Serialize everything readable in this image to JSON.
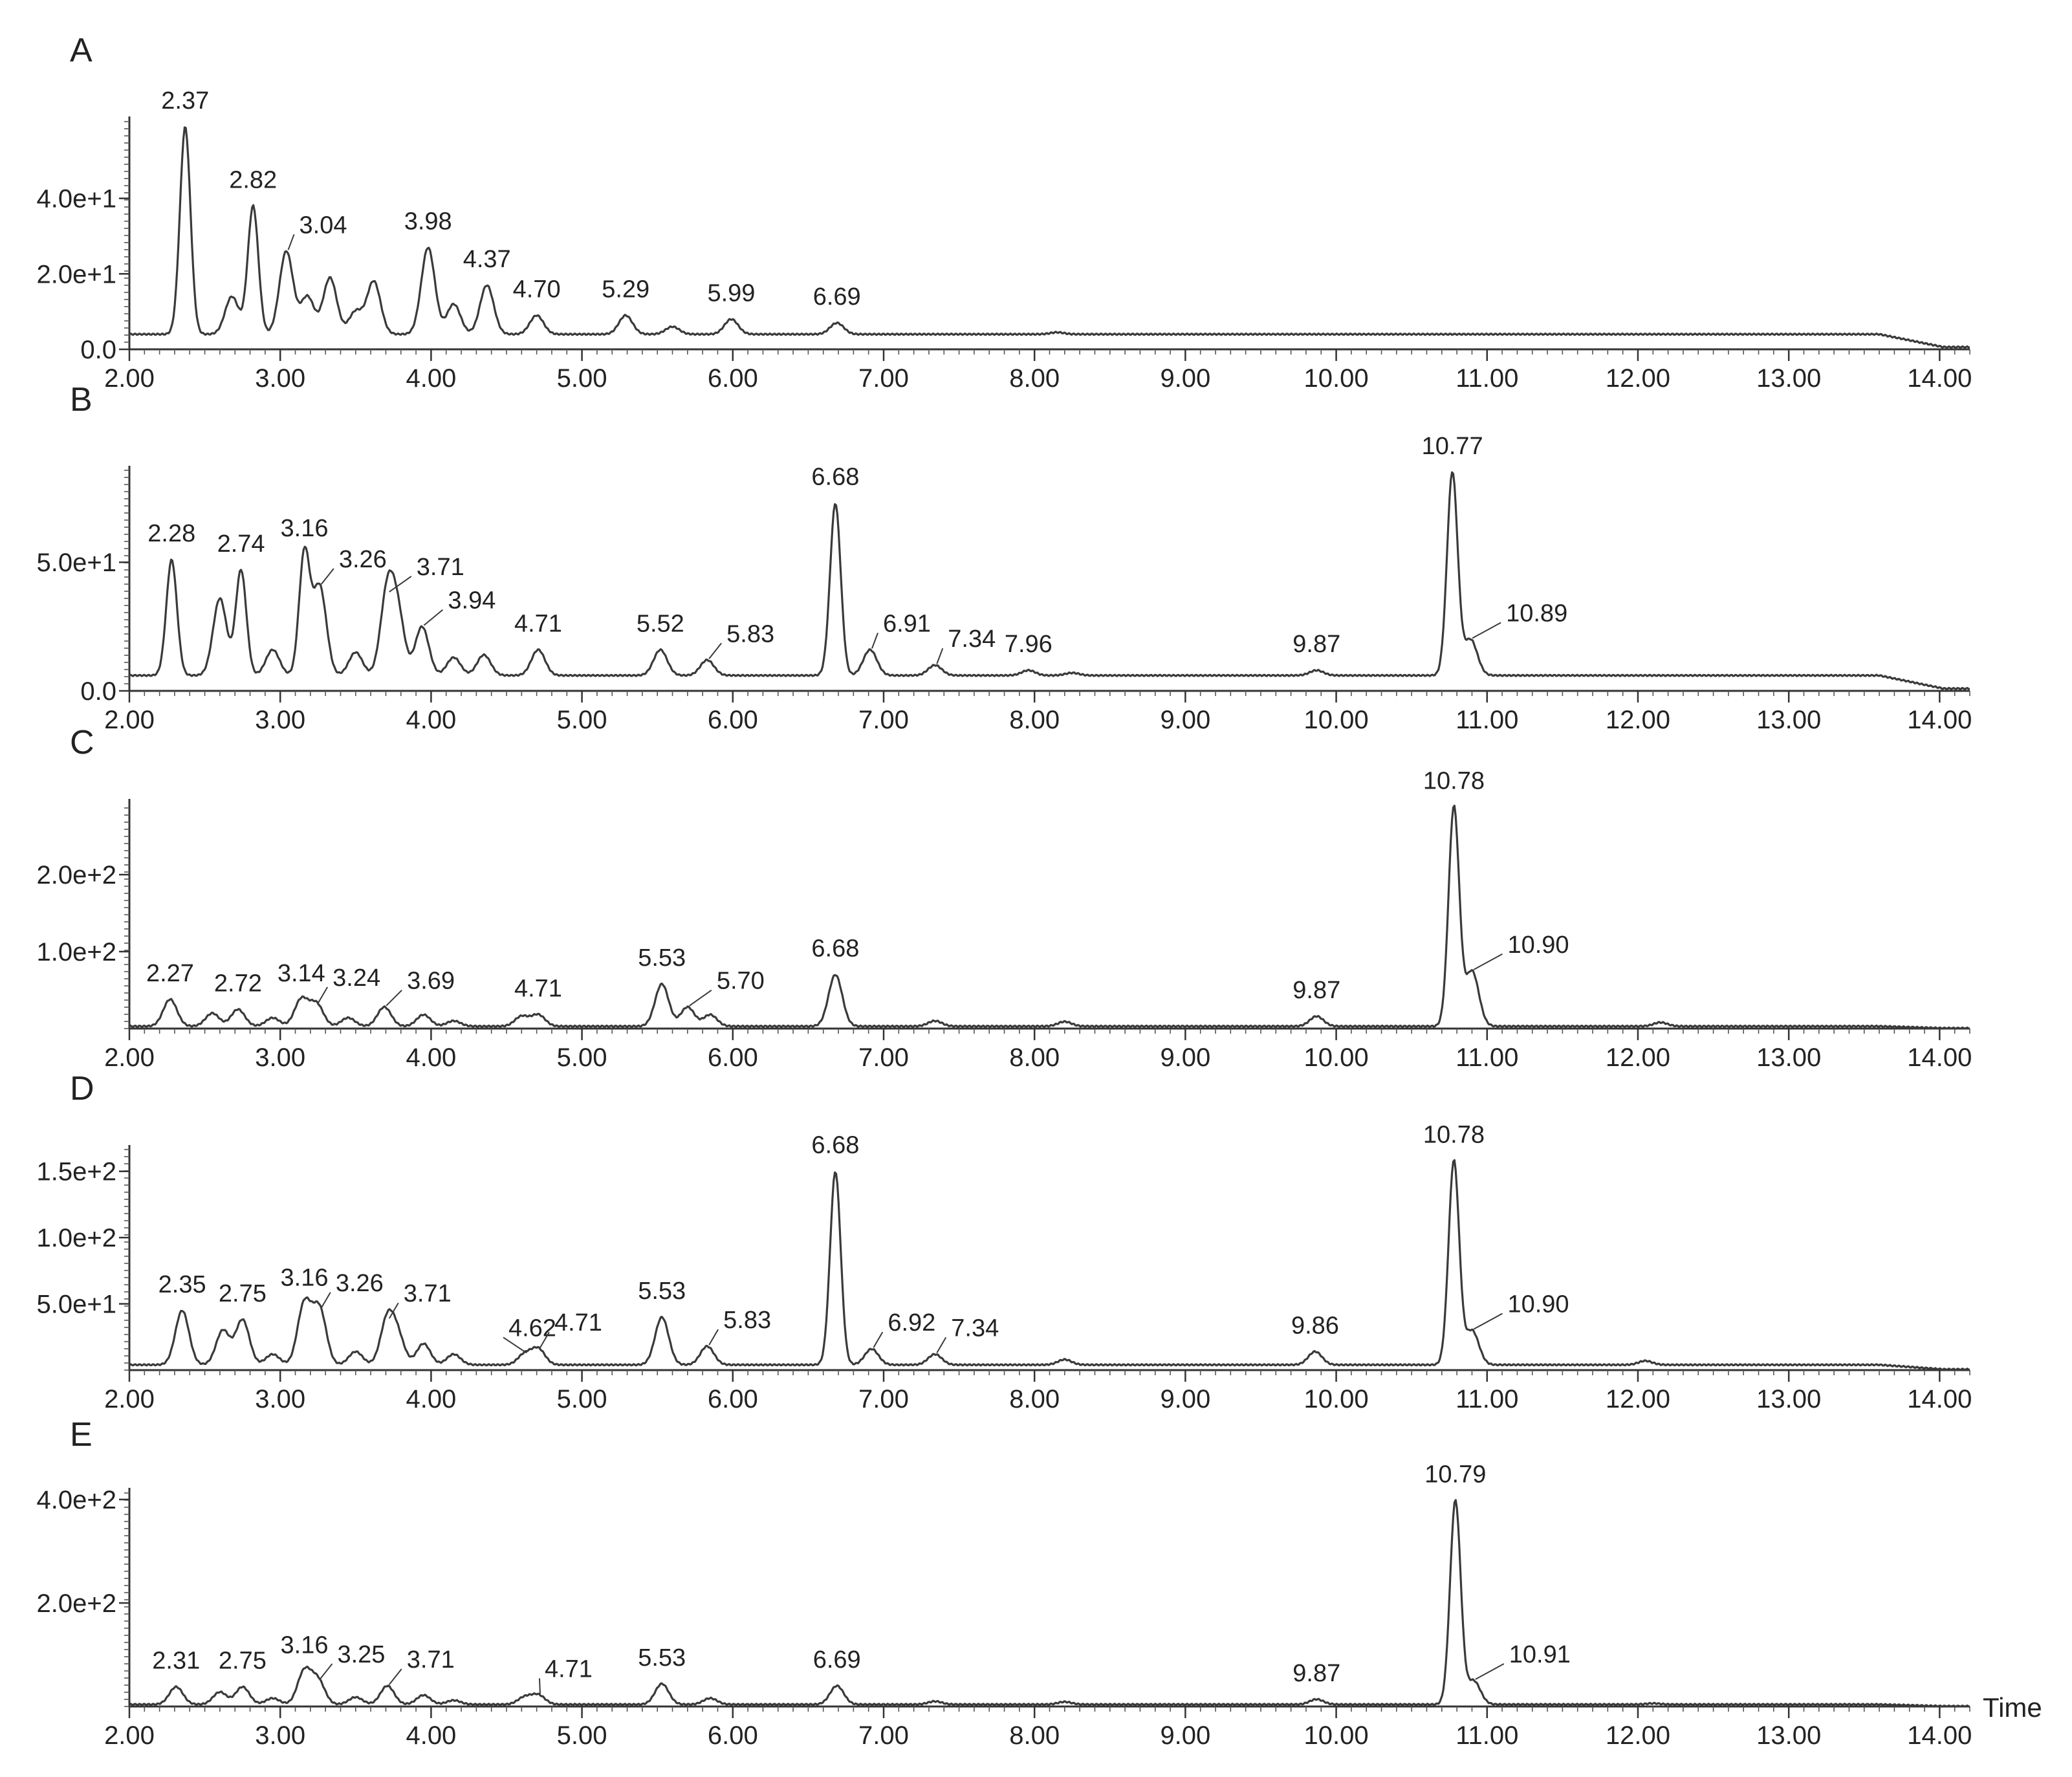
{
  "x_axis": {
    "ticks": [
      2,
      3,
      4,
      5,
      6,
      7,
      8,
      9,
      10,
      11,
      12,
      13,
      14
    ],
    "tick_labels": [
      "2.00",
      "3.00",
      "4.00",
      "5.00",
      "6.00",
      "7.00",
      "8.00",
      "9.00",
      "10.00",
      "11.00",
      "12.00",
      "13.00",
      "14.00"
    ],
    "xlim": [
      2.0,
      14.2
    ],
    "unit_label": "Time"
  },
  "chart_data": [
    {
      "type": "line",
      "panel": "A",
      "xlim": [
        2.0,
        14.2
      ],
      "ylim": [
        0,
        60
      ],
      "y_ticks": [
        0,
        20,
        40
      ],
      "y_tick_labels": [
        "0.0",
        "2.0e+1",
        "4.0e+1"
      ],
      "baseline": 4,
      "peaks": [
        {
          "x": 2.37,
          "y": 59,
          "label": "2.37"
        },
        {
          "x": 2.68,
          "y": 14
        },
        {
          "x": 2.82,
          "y": 38,
          "label": "2.82"
        },
        {
          "x": 3.04,
          "y": 26,
          "label": "3.04"
        },
        {
          "x": 3.18,
          "y": 14
        },
        {
          "x": 3.33,
          "y": 19
        },
        {
          "x": 3.5,
          "y": 10
        },
        {
          "x": 3.62,
          "y": 18
        },
        {
          "x": 3.98,
          "y": 27,
          "label": "3.98"
        },
        {
          "x": 4.15,
          "y": 12
        },
        {
          "x": 4.37,
          "y": 17,
          "label": "4.37"
        },
        {
          "x": 4.7,
          "y": 9,
          "label": "4.70"
        },
        {
          "x": 5.29,
          "y": 9,
          "label": "5.29"
        },
        {
          "x": 5.6,
          "y": 6
        },
        {
          "x": 5.99,
          "y": 8,
          "label": "5.99"
        },
        {
          "x": 6.69,
          "y": 7,
          "label": "6.69"
        },
        {
          "x": 8.15,
          "y": 4.5
        },
        {
          "x": 12.0,
          "y": 4
        },
        {
          "x": 13.45,
          "y": 4
        }
      ]
    },
    {
      "type": "line",
      "panel": "B",
      "xlim": [
        2.0,
        14.2
      ],
      "ylim": [
        0,
        85
      ],
      "y_ticks": [
        0,
        50
      ],
      "y_tick_labels": [
        "0.0",
        "5.0e+1"
      ],
      "baseline": 6,
      "peaks": [
        {
          "x": 2.28,
          "y": 51,
          "label": "2.28"
        },
        {
          "x": 2.6,
          "y": 36
        },
        {
          "x": 2.74,
          "y": 47,
          "label": "2.74"
        },
        {
          "x": 2.95,
          "y": 16
        },
        {
          "x": 3.16,
          "y": 53,
          "label": "3.16"
        },
        {
          "x": 3.26,
          "y": 41,
          "label": "3.26"
        },
        {
          "x": 3.5,
          "y": 15
        },
        {
          "x": 3.71,
          "y": 38,
          "label": "3.71"
        },
        {
          "x": 3.78,
          "y": 28
        },
        {
          "x": 3.94,
          "y": 25,
          "label": "3.94"
        },
        {
          "x": 4.15,
          "y": 13
        },
        {
          "x": 4.35,
          "y": 14
        },
        {
          "x": 4.71,
          "y": 16,
          "label": "4.71"
        },
        {
          "x": 5.52,
          "y": 16,
          "label": "5.52"
        },
        {
          "x": 5.83,
          "y": 12,
          "label": "5.83"
        },
        {
          "x": 6.68,
          "y": 73,
          "label": "6.68"
        },
        {
          "x": 6.91,
          "y": 16,
          "label": "6.91"
        },
        {
          "x": 7.34,
          "y": 10,
          "label": "7.34"
        },
        {
          "x": 7.96,
          "y": 8,
          "label": "7.96"
        },
        {
          "x": 8.25,
          "y": 7
        },
        {
          "x": 9.87,
          "y": 8,
          "label": "9.87"
        },
        {
          "x": 10.77,
          "y": 85,
          "label": "10.77"
        },
        {
          "x": 10.89,
          "y": 20,
          "label": "10.89"
        },
        {
          "x": 12.1,
          "y": 6
        },
        {
          "x": 13.4,
          "y": 6
        }
      ]
    },
    {
      "type": "line",
      "panel": "C",
      "xlim": [
        2.0,
        14.2
      ],
      "ylim": [
        0,
        290
      ],
      "y_ticks": [
        100,
        200
      ],
      "y_tick_labels": [
        "1.0e+2",
        "2.0e+2"
      ],
      "baseline": 3,
      "peaks": [
        {
          "x": 2.27,
          "y": 38,
          "label": "2.27"
        },
        {
          "x": 2.55,
          "y": 20
        },
        {
          "x": 2.72,
          "y": 25,
          "label": "2.72"
        },
        {
          "x": 2.95,
          "y": 14
        },
        {
          "x": 3.14,
          "y": 38,
          "label": "3.14"
        },
        {
          "x": 3.24,
          "y": 32,
          "label": "3.24"
        },
        {
          "x": 3.45,
          "y": 14
        },
        {
          "x": 3.69,
          "y": 28,
          "label": "3.69"
        },
        {
          "x": 3.95,
          "y": 18
        },
        {
          "x": 4.15,
          "y": 10
        },
        {
          "x": 4.6,
          "y": 16
        },
        {
          "x": 4.71,
          "y": 18,
          "label": "4.71"
        },
        {
          "x": 5.53,
          "y": 58,
          "label": "5.53"
        },
        {
          "x": 5.7,
          "y": 28,
          "label": "5.70"
        },
        {
          "x": 5.85,
          "y": 18
        },
        {
          "x": 6.68,
          "y": 70,
          "label": "6.68"
        },
        {
          "x": 7.34,
          "y": 10
        },
        {
          "x": 8.2,
          "y": 9
        },
        {
          "x": 9.87,
          "y": 16,
          "label": "9.87"
        },
        {
          "x": 10.78,
          "y": 288,
          "label": "10.78"
        },
        {
          "x": 10.9,
          "y": 75,
          "label": "10.90"
        },
        {
          "x": 12.15,
          "y": 8
        }
      ]
    },
    {
      "type": "line",
      "panel": "D",
      "xlim": [
        2.0,
        14.2
      ],
      "ylim": [
        0,
        165
      ],
      "y_ticks": [
        50,
        100,
        150
      ],
      "y_tick_labels": [
        "5.0e+1",
        "1.0e+2",
        "1.5e+2"
      ],
      "baseline": 4,
      "peaks": [
        {
          "x": 2.35,
          "y": 45,
          "label": "2.35"
        },
        {
          "x": 2.62,
          "y": 30
        },
        {
          "x": 2.75,
          "y": 38,
          "label": "2.75"
        },
        {
          "x": 2.95,
          "y": 12
        },
        {
          "x": 3.16,
          "y": 50,
          "label": "3.16"
        },
        {
          "x": 3.26,
          "y": 46,
          "label": "3.26"
        },
        {
          "x": 3.5,
          "y": 14
        },
        {
          "x": 3.71,
          "y": 38,
          "label": "3.71"
        },
        {
          "x": 3.78,
          "y": 24
        },
        {
          "x": 3.95,
          "y": 20
        },
        {
          "x": 4.15,
          "y": 12
        },
        {
          "x": 4.62,
          "y": 12,
          "label": "4.62"
        },
        {
          "x": 4.71,
          "y": 16,
          "label": "4.71"
        },
        {
          "x": 5.53,
          "y": 40,
          "label": "5.53"
        },
        {
          "x": 5.83,
          "y": 18,
          "label": "5.83"
        },
        {
          "x": 6.68,
          "y": 150,
          "label": "6.68"
        },
        {
          "x": 6.92,
          "y": 16,
          "label": "6.92"
        },
        {
          "x": 7.34,
          "y": 12,
          "label": "7.34"
        },
        {
          "x": 8.2,
          "y": 8
        },
        {
          "x": 9.86,
          "y": 14,
          "label": "9.86"
        },
        {
          "x": 10.78,
          "y": 158,
          "label": "10.78"
        },
        {
          "x": 10.9,
          "y": 30,
          "label": "10.90"
        },
        {
          "x": 12.05,
          "y": 7
        }
      ]
    },
    {
      "type": "line",
      "panel": "E",
      "xlim": [
        2.0,
        14.2
      ],
      "ylim": [
        0,
        410
      ],
      "y_ticks": [
        200,
        400
      ],
      "y_tick_labels": [
        "2.0e+2",
        "4.0e+2"
      ],
      "baseline": 4,
      "peaks": [
        {
          "x": 2.31,
          "y": 38,
          "label": "2.31"
        },
        {
          "x": 2.6,
          "y": 28
        },
        {
          "x": 2.75,
          "y": 38,
          "label": "2.75"
        },
        {
          "x": 2.95,
          "y": 16
        },
        {
          "x": 3.16,
          "y": 68,
          "label": "3.16"
        },
        {
          "x": 3.25,
          "y": 50,
          "label": "3.25"
        },
        {
          "x": 3.5,
          "y": 18
        },
        {
          "x": 3.71,
          "y": 40,
          "label": "3.71"
        },
        {
          "x": 3.95,
          "y": 22
        },
        {
          "x": 4.15,
          "y": 12
        },
        {
          "x": 4.62,
          "y": 18
        },
        {
          "x": 4.71,
          "y": 22,
          "label": "4.71"
        },
        {
          "x": 5.53,
          "y": 44,
          "label": "5.53"
        },
        {
          "x": 5.85,
          "y": 16
        },
        {
          "x": 6.69,
          "y": 40,
          "label": "6.69"
        },
        {
          "x": 7.34,
          "y": 10
        },
        {
          "x": 8.2,
          "y": 9
        },
        {
          "x": 9.87,
          "y": 14,
          "label": "9.87"
        },
        {
          "x": 10.79,
          "y": 398,
          "label": "10.79"
        },
        {
          "x": 10.91,
          "y": 50,
          "label": "10.91"
        },
        {
          "x": 12.1,
          "y": 6
        }
      ]
    }
  ]
}
